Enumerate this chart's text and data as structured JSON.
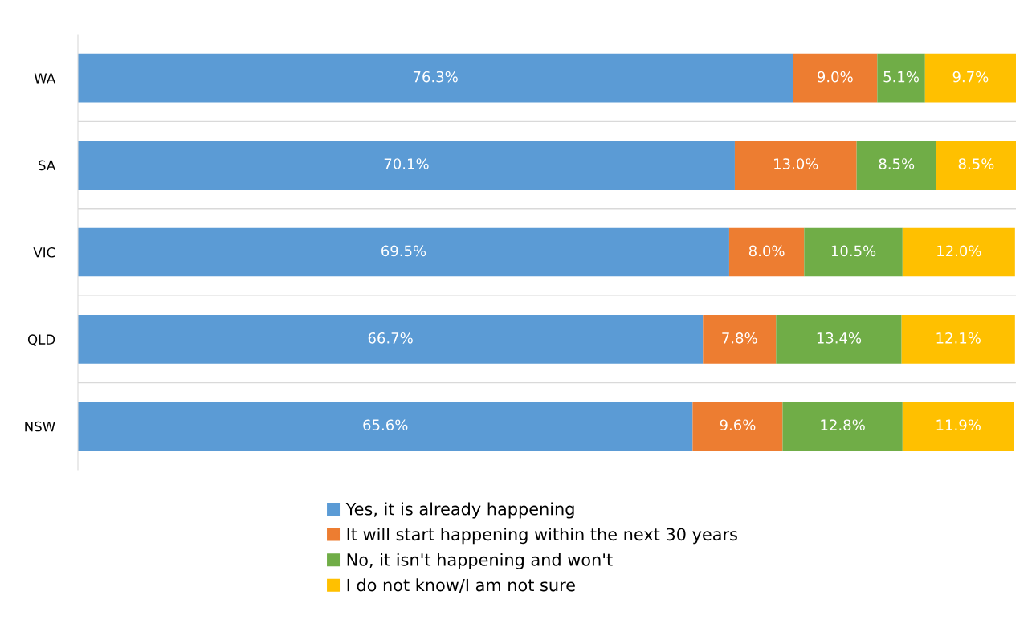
{
  "chart_data": {
    "type": "bar",
    "orientation": "horizontal",
    "stacked": true,
    "categories": [
      "WA",
      "SA",
      "VIC",
      "QLD",
      "NSW"
    ],
    "series": [
      {
        "name": "Yes, it is already happening",
        "color": "#5b9bd5",
        "values": [
          76.3,
          70.1,
          69.5,
          66.7,
          65.6
        ],
        "value_labels": [
          "76.3%",
          "70.1%",
          "69.5%",
          "66.7%",
          "65.6%"
        ]
      },
      {
        "name": "It will start happening within the next 30 years",
        "color": "#ed7d31",
        "values": [
          9.0,
          13.0,
          8.0,
          7.8,
          9.6
        ],
        "value_labels": [
          "9.0%",
          "13.0%",
          "8.0%",
          "7.8%",
          "9.6%"
        ]
      },
      {
        "name": "No, it isn't happening and won't",
        "color": "#70ad47",
        "values": [
          5.1,
          8.5,
          10.5,
          13.4,
          12.8
        ],
        "value_labels": [
          "5.1%",
          "8.5%",
          "10.5%",
          "13.4%",
          "12.8%"
        ]
      },
      {
        "name": "I do not know/I am not sure",
        "color": "#ffc000",
        "values": [
          9.7,
          8.5,
          12.0,
          12.1,
          11.9
        ],
        "value_labels": [
          "9.7%",
          "8.5%",
          "12.0%",
          "12.1%",
          "11.9%"
        ]
      }
    ],
    "xlim": [
      0,
      100.1
    ],
    "tick_labels": "y",
    "grid": "y",
    "legend": "bottom"
  }
}
